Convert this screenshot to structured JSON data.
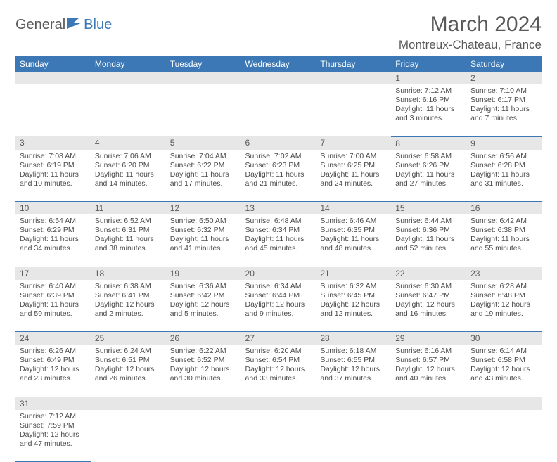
{
  "logo": {
    "part1": "General",
    "part2": "Blue"
  },
  "title": "March 2024",
  "location": "Montreux-Chateau, France",
  "colors": {
    "accent": "#3b78b5",
    "header_text": "#ffffff",
    "daynum_bg": "#e7e7e7",
    "text": "#595959",
    "body_text": "#4a4a4a",
    "row_border": "#3b78b5"
  },
  "weekdays": [
    "Sunday",
    "Monday",
    "Tuesday",
    "Wednesday",
    "Thursday",
    "Friday",
    "Saturday"
  ],
  "weeks": [
    [
      null,
      null,
      null,
      null,
      null,
      {
        "n": "1",
        "sr": "7:12 AM",
        "ss": "6:16 PM",
        "dh": "11",
        "dm": "3"
      },
      {
        "n": "2",
        "sr": "7:10 AM",
        "ss": "6:17 PM",
        "dh": "11",
        "dm": "7"
      }
    ],
    [
      {
        "n": "3",
        "sr": "7:08 AM",
        "ss": "6:19 PM",
        "dh": "11",
        "dm": "10"
      },
      {
        "n": "4",
        "sr": "7:06 AM",
        "ss": "6:20 PM",
        "dh": "11",
        "dm": "14"
      },
      {
        "n": "5",
        "sr": "7:04 AM",
        "ss": "6:22 PM",
        "dh": "11",
        "dm": "17"
      },
      {
        "n": "6",
        "sr": "7:02 AM",
        "ss": "6:23 PM",
        "dh": "11",
        "dm": "21"
      },
      {
        "n": "7",
        "sr": "7:00 AM",
        "ss": "6:25 PM",
        "dh": "11",
        "dm": "24"
      },
      {
        "n": "8",
        "sr": "6:58 AM",
        "ss": "6:26 PM",
        "dh": "11",
        "dm": "27"
      },
      {
        "n": "9",
        "sr": "6:56 AM",
        "ss": "6:28 PM",
        "dh": "11",
        "dm": "31"
      }
    ],
    [
      {
        "n": "10",
        "sr": "6:54 AM",
        "ss": "6:29 PM",
        "dh": "11",
        "dm": "34"
      },
      {
        "n": "11",
        "sr": "6:52 AM",
        "ss": "6:31 PM",
        "dh": "11",
        "dm": "38"
      },
      {
        "n": "12",
        "sr": "6:50 AM",
        "ss": "6:32 PM",
        "dh": "11",
        "dm": "41"
      },
      {
        "n": "13",
        "sr": "6:48 AM",
        "ss": "6:34 PM",
        "dh": "11",
        "dm": "45"
      },
      {
        "n": "14",
        "sr": "6:46 AM",
        "ss": "6:35 PM",
        "dh": "11",
        "dm": "48"
      },
      {
        "n": "15",
        "sr": "6:44 AM",
        "ss": "6:36 PM",
        "dh": "11",
        "dm": "52"
      },
      {
        "n": "16",
        "sr": "6:42 AM",
        "ss": "6:38 PM",
        "dh": "11",
        "dm": "55"
      }
    ],
    [
      {
        "n": "17",
        "sr": "6:40 AM",
        "ss": "6:39 PM",
        "dh": "11",
        "dm": "59"
      },
      {
        "n": "18",
        "sr": "6:38 AM",
        "ss": "6:41 PM",
        "dh": "12",
        "dm": "2"
      },
      {
        "n": "19",
        "sr": "6:36 AM",
        "ss": "6:42 PM",
        "dh": "12",
        "dm": "5"
      },
      {
        "n": "20",
        "sr": "6:34 AM",
        "ss": "6:44 PM",
        "dh": "12",
        "dm": "9"
      },
      {
        "n": "21",
        "sr": "6:32 AM",
        "ss": "6:45 PM",
        "dh": "12",
        "dm": "12"
      },
      {
        "n": "22",
        "sr": "6:30 AM",
        "ss": "6:47 PM",
        "dh": "12",
        "dm": "16"
      },
      {
        "n": "23",
        "sr": "6:28 AM",
        "ss": "6:48 PM",
        "dh": "12",
        "dm": "19"
      }
    ],
    [
      {
        "n": "24",
        "sr": "6:26 AM",
        "ss": "6:49 PM",
        "dh": "12",
        "dm": "23"
      },
      {
        "n": "25",
        "sr": "6:24 AM",
        "ss": "6:51 PM",
        "dh": "12",
        "dm": "26"
      },
      {
        "n": "26",
        "sr": "6:22 AM",
        "ss": "6:52 PM",
        "dh": "12",
        "dm": "30"
      },
      {
        "n": "27",
        "sr": "6:20 AM",
        "ss": "6:54 PM",
        "dh": "12",
        "dm": "33"
      },
      {
        "n": "28",
        "sr": "6:18 AM",
        "ss": "6:55 PM",
        "dh": "12",
        "dm": "37"
      },
      {
        "n": "29",
        "sr": "6:16 AM",
        "ss": "6:57 PM",
        "dh": "12",
        "dm": "40"
      },
      {
        "n": "30",
        "sr": "6:14 AM",
        "ss": "6:58 PM",
        "dh": "12",
        "dm": "43"
      }
    ],
    [
      {
        "n": "31",
        "sr": "7:12 AM",
        "ss": "7:59 PM",
        "dh": "12",
        "dm": "47"
      },
      null,
      null,
      null,
      null,
      null,
      null
    ]
  ],
  "labels": {
    "sunrise": "Sunrise:",
    "sunset": "Sunset:",
    "daylight": "Daylight:",
    "hours": "hours",
    "and": "and",
    "minutes": "minutes."
  }
}
